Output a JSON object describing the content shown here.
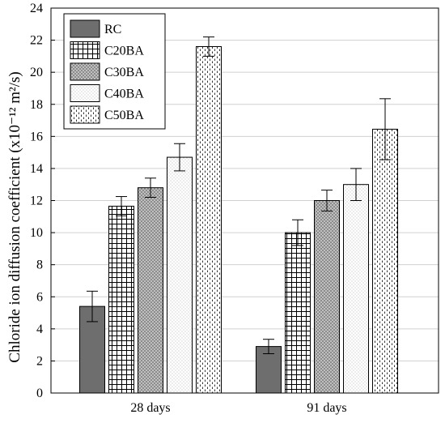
{
  "chart_data": {
    "type": "bar",
    "title": "",
    "xlabel": "",
    "ylabel": "Chloride ion diffusion coefficient (x10⁻¹² m²/s)",
    "ylim": [
      0,
      24
    ],
    "yticks": [
      0,
      2,
      4,
      6,
      8,
      10,
      12,
      14,
      16,
      18,
      20,
      22,
      24
    ],
    "grid": true,
    "legend_position": "top-left",
    "categories": [
      "28 days",
      "91 days"
    ],
    "series": [
      {
        "name": "RC",
        "values": [
          5.4,
          2.9
        ],
        "errors": [
          0.95,
          0.45
        ],
        "pattern": "solid-gray"
      },
      {
        "name": "C20BA",
        "values": [
          11.65,
          10.0
        ],
        "errors": [
          0.6,
          0.8
        ],
        "pattern": "grid"
      },
      {
        "name": "C30BA",
        "values": [
          12.8,
          12.0
        ],
        "errors": [
          0.6,
          0.65
        ],
        "pattern": "dark-dots"
      },
      {
        "name": "C40BA",
        "values": [
          14.7,
          13.0
        ],
        "errors": [
          0.85,
          1.0
        ],
        "pattern": "light-dots"
      },
      {
        "name": "C50BA",
        "values": [
          21.6,
          16.45
        ],
        "errors": [
          0.6,
          1.9
        ],
        "pattern": "dashes"
      }
    ],
    "colors": {
      "solid_gray": "#6e6e6e",
      "dark_dots_bg": "#8a8a8a",
      "grid_lines": "#000000",
      "light_dots_bg": "#ffffff",
      "dash_color": "#3a3a3a"
    }
  }
}
